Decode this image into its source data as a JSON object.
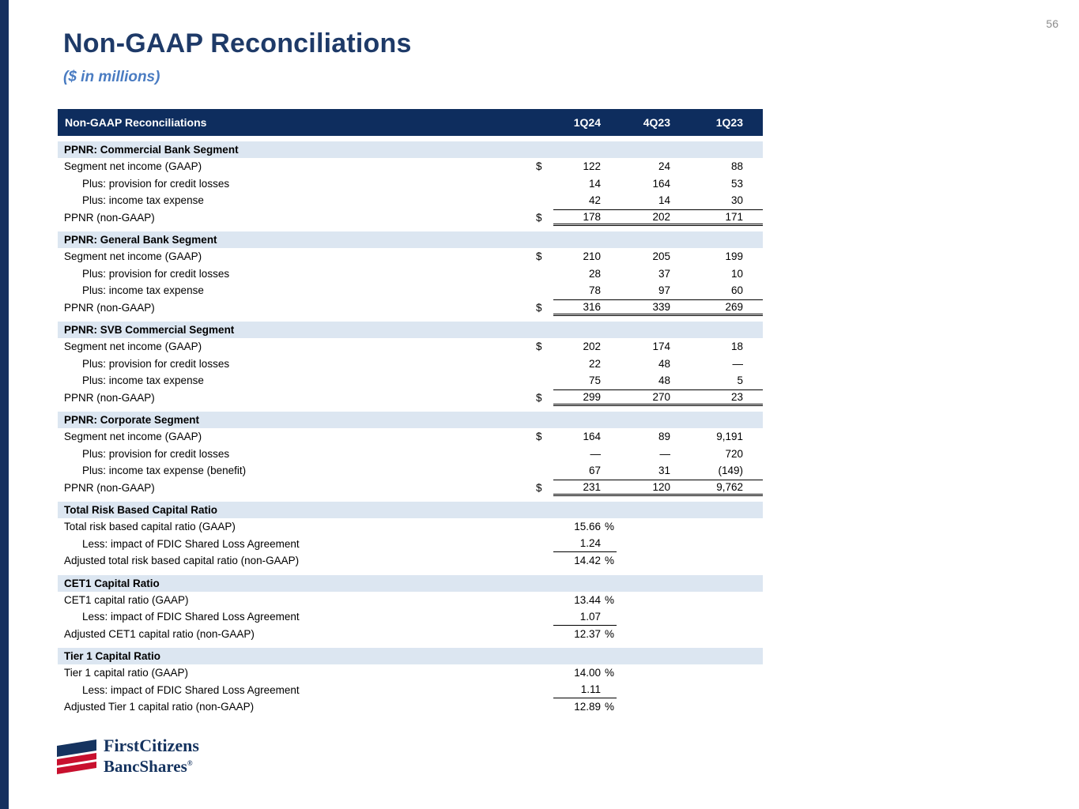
{
  "page": {
    "number": "56"
  },
  "header": {
    "title": "Non-GAAP Reconciliations",
    "subtitle": "($ in millions)"
  },
  "table": {
    "title": "Non-GAAP Reconciliations",
    "columns": [
      "1Q24",
      "4Q23",
      "1Q23"
    ],
    "sections": [
      {
        "title": "PPNR: Commercial Bank Segment",
        "rows": [
          {
            "label": "Segment net income (GAAP)",
            "indent": false,
            "dollar": "$",
            "values": [
              "122",
              "24",
              "88"
            ],
            "style": "normal"
          },
          {
            "label": "Plus: provision for credit losses",
            "indent": true,
            "dollar": "",
            "values": [
              "14",
              "164",
              "53"
            ],
            "style": "normal"
          },
          {
            "label": "Plus: income tax expense",
            "indent": true,
            "dollar": "",
            "values": [
              "42",
              "14",
              "30"
            ],
            "style": "normal"
          },
          {
            "label": "PPNR (non-GAAP)",
            "indent": false,
            "dollar": "$",
            "values": [
              "178",
              "202",
              "171"
            ],
            "style": "total"
          }
        ]
      },
      {
        "title": "PPNR: General Bank Segment",
        "rows": [
          {
            "label": "Segment net income (GAAP)",
            "indent": false,
            "dollar": "$",
            "values": [
              "210",
              "205",
              "199"
            ],
            "style": "normal"
          },
          {
            "label": "Plus: provision for credit losses",
            "indent": true,
            "dollar": "",
            "values": [
              "28",
              "37",
              "10"
            ],
            "style": "normal"
          },
          {
            "label": "Plus: income tax expense",
            "indent": true,
            "dollar": "",
            "values": [
              "78",
              "97",
              "60"
            ],
            "style": "normal"
          },
          {
            "label": "PPNR (non-GAAP)",
            "indent": false,
            "dollar": "$",
            "values": [
              "316",
              "339",
              "269"
            ],
            "style": "total"
          }
        ]
      },
      {
        "title": "PPNR: SVB Commercial Segment",
        "rows": [
          {
            "label": "Segment net income (GAAP)",
            "indent": false,
            "dollar": "$",
            "values": [
              "202",
              "174",
              "18"
            ],
            "style": "normal"
          },
          {
            "label": "Plus: provision for credit losses",
            "indent": true,
            "dollar": "",
            "values": [
              "22",
              "48",
              "—"
            ],
            "style": "normal"
          },
          {
            "label": "Plus: income tax expense",
            "indent": true,
            "dollar": "",
            "values": [
              "75",
              "48",
              "5"
            ],
            "style": "normal"
          },
          {
            "label": "PPNR (non-GAAP)",
            "indent": false,
            "dollar": "$",
            "values": [
              "299",
              "270",
              "23"
            ],
            "style": "total"
          }
        ]
      },
      {
        "title": "PPNR: Corporate Segment",
        "rows": [
          {
            "label": "Segment net income (GAAP)",
            "indent": false,
            "dollar": "$",
            "values": [
              "164",
              "89",
              "9,191"
            ],
            "style": "normal"
          },
          {
            "label": "Plus: provision for credit losses",
            "indent": true,
            "dollar": "",
            "values": [
              "—",
              "—",
              "720"
            ],
            "style": "normal"
          },
          {
            "label": "Plus: income tax expense (benefit)",
            "indent": true,
            "dollar": "",
            "values": [
              "67",
              "31",
              "(149)"
            ],
            "style": "normal"
          },
          {
            "label": "PPNR (non-GAAP)",
            "indent": false,
            "dollar": "$",
            "values": [
              "231",
              "120",
              "9,762"
            ],
            "style": "total"
          }
        ]
      },
      {
        "title": "Total Risk Based Capital Ratio",
        "rows": [
          {
            "label": "Total risk based capital ratio (GAAP)",
            "indent": false,
            "dollar": "",
            "values": [
              "15.66 %",
              "",
              ""
            ],
            "style": "normal"
          },
          {
            "label": "Less: impact of FDIC Shared Loss Agreement",
            "indent": true,
            "dollar": "",
            "values": [
              "1.24",
              "",
              ""
            ],
            "style": "less"
          },
          {
            "label": "Adjusted total risk based capital ratio (non-GAAP)",
            "indent": false,
            "dollar": "",
            "values": [
              "14.42 %",
              "",
              ""
            ],
            "style": "normal"
          }
        ]
      },
      {
        "title": "CET1 Capital Ratio",
        "rows": [
          {
            "label": "CET1 capital ratio (GAAP)",
            "indent": false,
            "dollar": "",
            "values": [
              "13.44 %",
              "",
              ""
            ],
            "style": "normal"
          },
          {
            "label": "Less: impact of FDIC Shared Loss Agreement",
            "indent": true,
            "dollar": "",
            "values": [
              "1.07",
              "",
              ""
            ],
            "style": "less"
          },
          {
            "label": "Adjusted CET1 capital ratio (non-GAAP)",
            "indent": false,
            "dollar": "",
            "values": [
              "12.37 %",
              "",
              ""
            ],
            "style": "normal"
          }
        ]
      },
      {
        "title": "Tier 1 Capital Ratio",
        "rows": [
          {
            "label": "Tier 1 capital ratio (GAAP)",
            "indent": false,
            "dollar": "",
            "values": [
              "14.00 %",
              "",
              ""
            ],
            "style": "normal"
          },
          {
            "label": "Less: impact of FDIC Shared Loss Agreement",
            "indent": true,
            "dollar": "",
            "values": [
              "1.11",
              "",
              ""
            ],
            "style": "less"
          },
          {
            "label": "Adjusted Tier 1 capital ratio (non-GAAP)",
            "indent": false,
            "dollar": "",
            "values": [
              "12.89 %",
              "",
              ""
            ],
            "style": "normal"
          }
        ]
      }
    ]
  },
  "logo": {
    "line1": "FirstCitizens",
    "line2": "BancShares",
    "reg": "®"
  },
  "colors": {
    "accent_navy": "#0e2d5e",
    "left_bar": "#16305f",
    "title_navy": "#1e3a68",
    "subtitle_blue": "#4a7cc2",
    "section_bg": "#dce6f1",
    "logo_red": "#c8102e"
  }
}
